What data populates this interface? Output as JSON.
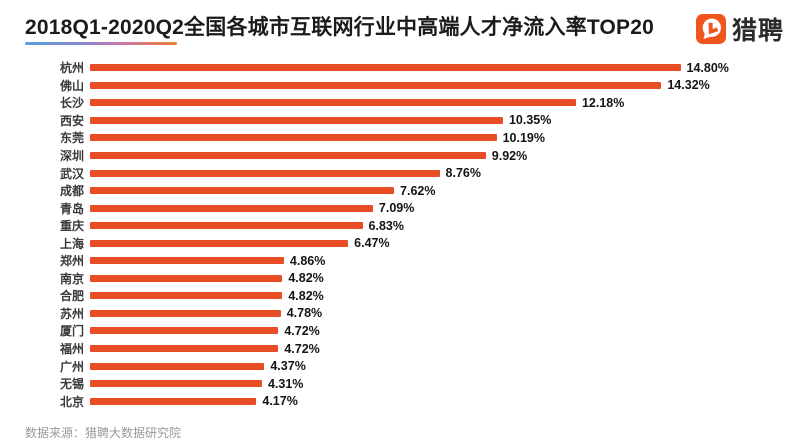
{
  "page": {
    "title": "2018Q1-2020Q2全国各城市互联网行业中高端人才净流入率TOP20",
    "logo_text": "猎聘",
    "source_note": "数据来源：猎聘大数据研究院"
  },
  "colors": {
    "bar": "#e84d26",
    "logo_orange": "#f0551e",
    "title_text": "#1b1b1b",
    "source_text": "#999999",
    "underline_gradient": [
      "#58a0dc",
      "#8f85cf",
      "#c977a4",
      "#ee7e35"
    ]
  },
  "chart_data": {
    "type": "bar",
    "orientation": "horizontal",
    "title": "2018Q1-2020Q2全国各城市互联网行业中高端人才净流入率TOP20",
    "unit": "%",
    "xlim": [
      0,
      15
    ],
    "grid": false,
    "axis_shown": false,
    "value_labels_shown": true,
    "categories": [
      "杭州",
      "佛山",
      "长沙",
      "西安",
      "东莞",
      "深圳",
      "武汉",
      "成都",
      "青岛",
      "重庆",
      "上海",
      "郑州",
      "南京",
      "合肥",
      "苏州",
      "厦门",
      "福州",
      "广州",
      "无锡",
      "北京"
    ],
    "values": [
      14.8,
      14.32,
      12.18,
      10.35,
      10.19,
      9.92,
      8.76,
      7.62,
      7.09,
      6.83,
      6.47,
      4.86,
      4.82,
      4.82,
      4.78,
      4.72,
      4.72,
      4.37,
      4.31,
      4.17
    ],
    "value_labels": [
      "14.80%",
      "14.32%",
      "12.18%",
      "10.35%",
      "10.19%",
      "9.92%",
      "8.76%",
      "7.62%",
      "7.09%",
      "6.83%",
      "6.47%",
      "4.86%",
      "4.82%",
      "4.82%",
      "4.78%",
      "4.72%",
      "4.72%",
      "4.37%",
      "4.31%",
      "4.17%"
    ]
  }
}
